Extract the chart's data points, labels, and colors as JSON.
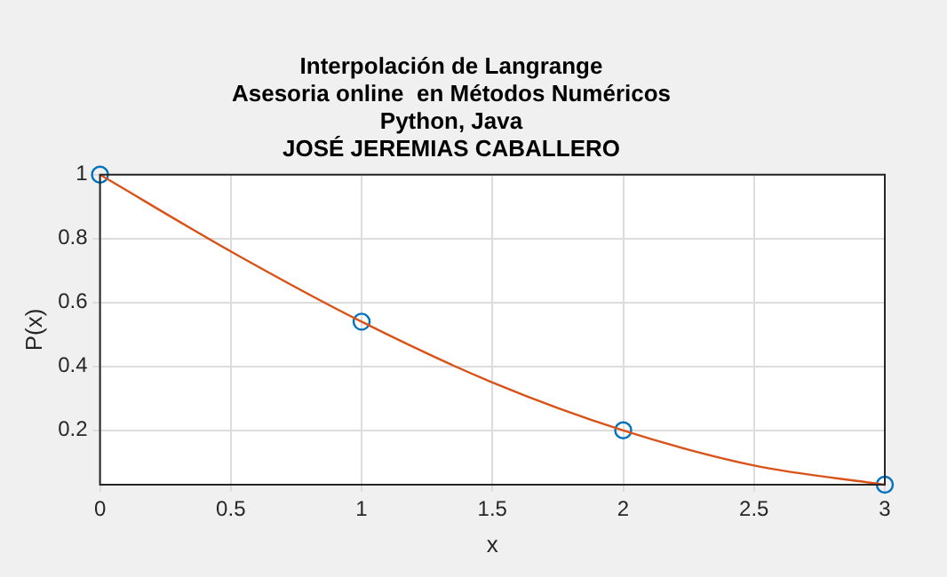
{
  "chart_data": {
    "type": "line",
    "title": "Interpolación de Langrange\nAsesoria online  en Métodos Numéricos\nPython, Java\nJOSÉ JEREMIAS CABALLERO",
    "xlabel": "x",
    "ylabel": "P(x)",
    "series": [
      {
        "color": "#d95319",
        "marker": "none",
        "x": [
          0,
          0.5,
          1,
          1.5,
          2,
          2.5,
          3
        ],
        "values": [
          1,
          0.76,
          0.54,
          0.35,
          0.2,
          0.09,
          0.03
        ]
      },
      {
        "type": "scatter",
        "color": "#0072bd",
        "marker": "circle",
        "x": [
          0,
          1,
          2,
          3
        ],
        "values": [
          1,
          0.54,
          0.2,
          0.03
        ]
      }
    ],
    "xlim": [
      0,
      3
    ],
    "xticks": [
      0,
      0.5,
      1,
      1.5,
      2,
      2.5,
      3
    ],
    "ylim": [
      0.03,
      1
    ],
    "yticks": [
      0.2,
      0.4,
      0.6,
      0.8,
      1
    ],
    "grid": true,
    "legend": false
  }
}
